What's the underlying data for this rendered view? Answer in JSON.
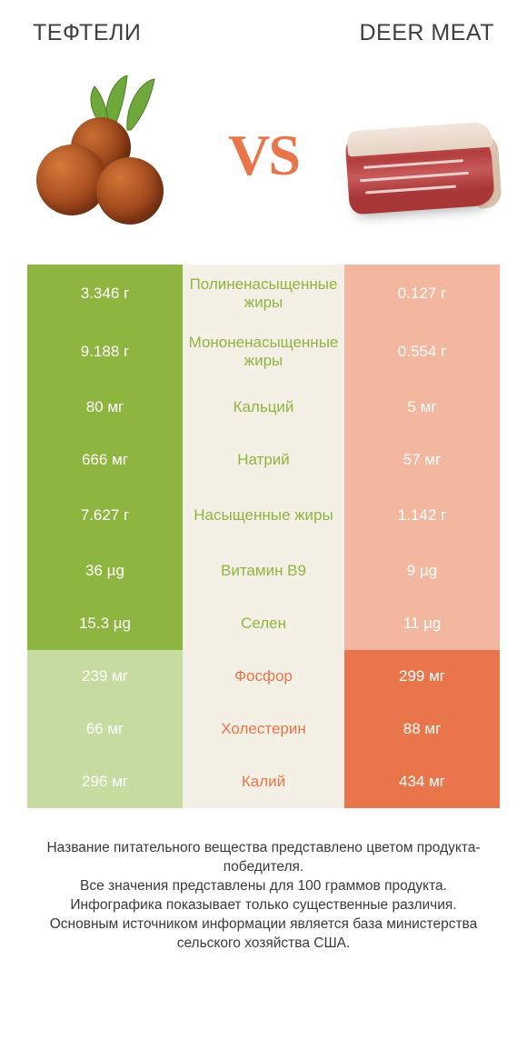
{
  "colors": {
    "left_win": "#8eb53f",
    "right_win": "#e9764a",
    "left_lose": "#c7dca0",
    "right_lose": "#f2b79e",
    "label_bg": "#f4f0e6",
    "vs": "#e9764a",
    "title": "#404040"
  },
  "header": {
    "left_title": "ТЕФТЕЛИ",
    "right_title": "DEER MEAT",
    "vs_text": "VS"
  },
  "comparison": {
    "rows": [
      {
        "label": "Полиненасыщенные жиры",
        "left": "3.346 г",
        "right": "0.127 г",
        "winner": "left",
        "tall": true
      },
      {
        "label": "Мононенасыщенные жиры",
        "left": "9.188 г",
        "right": "0.554 г",
        "winner": "left",
        "tall": true
      },
      {
        "label": "Кальций",
        "left": "80 мг",
        "right": "5 мг",
        "winner": "left",
        "tall": false
      },
      {
        "label": "Натрий",
        "left": "666 мг",
        "right": "57 мг",
        "winner": "left",
        "tall": false
      },
      {
        "label": "Насыщенные жиры",
        "left": "7.627 г",
        "right": "1.142 г",
        "winner": "left",
        "tall": true
      },
      {
        "label": "Витамин B9",
        "left": "36 µg",
        "right": "9 µg",
        "winner": "left",
        "tall": false
      },
      {
        "label": "Селен",
        "left": "15.3 µg",
        "right": "11 µg",
        "winner": "left",
        "tall": false
      },
      {
        "label": "Фосфор",
        "left": "239 мг",
        "right": "299 мг",
        "winner": "right",
        "tall": false
      },
      {
        "label": "Холестерин",
        "left": "66 мг",
        "right": "88 мг",
        "winner": "right",
        "tall": false
      },
      {
        "label": "Калий",
        "left": "296 мг",
        "right": "434 мг",
        "winner": "right",
        "tall": false
      }
    ]
  },
  "footnote": {
    "line1": "Название питательного вещества представлено цветом продукта-победителя.",
    "line2": "Все значения представлены для 100 граммов продукта.",
    "line3": "Инфографика показывает только существенные различия.",
    "line4": "Основным источником информации является база министерства сельского хозяйства США."
  }
}
